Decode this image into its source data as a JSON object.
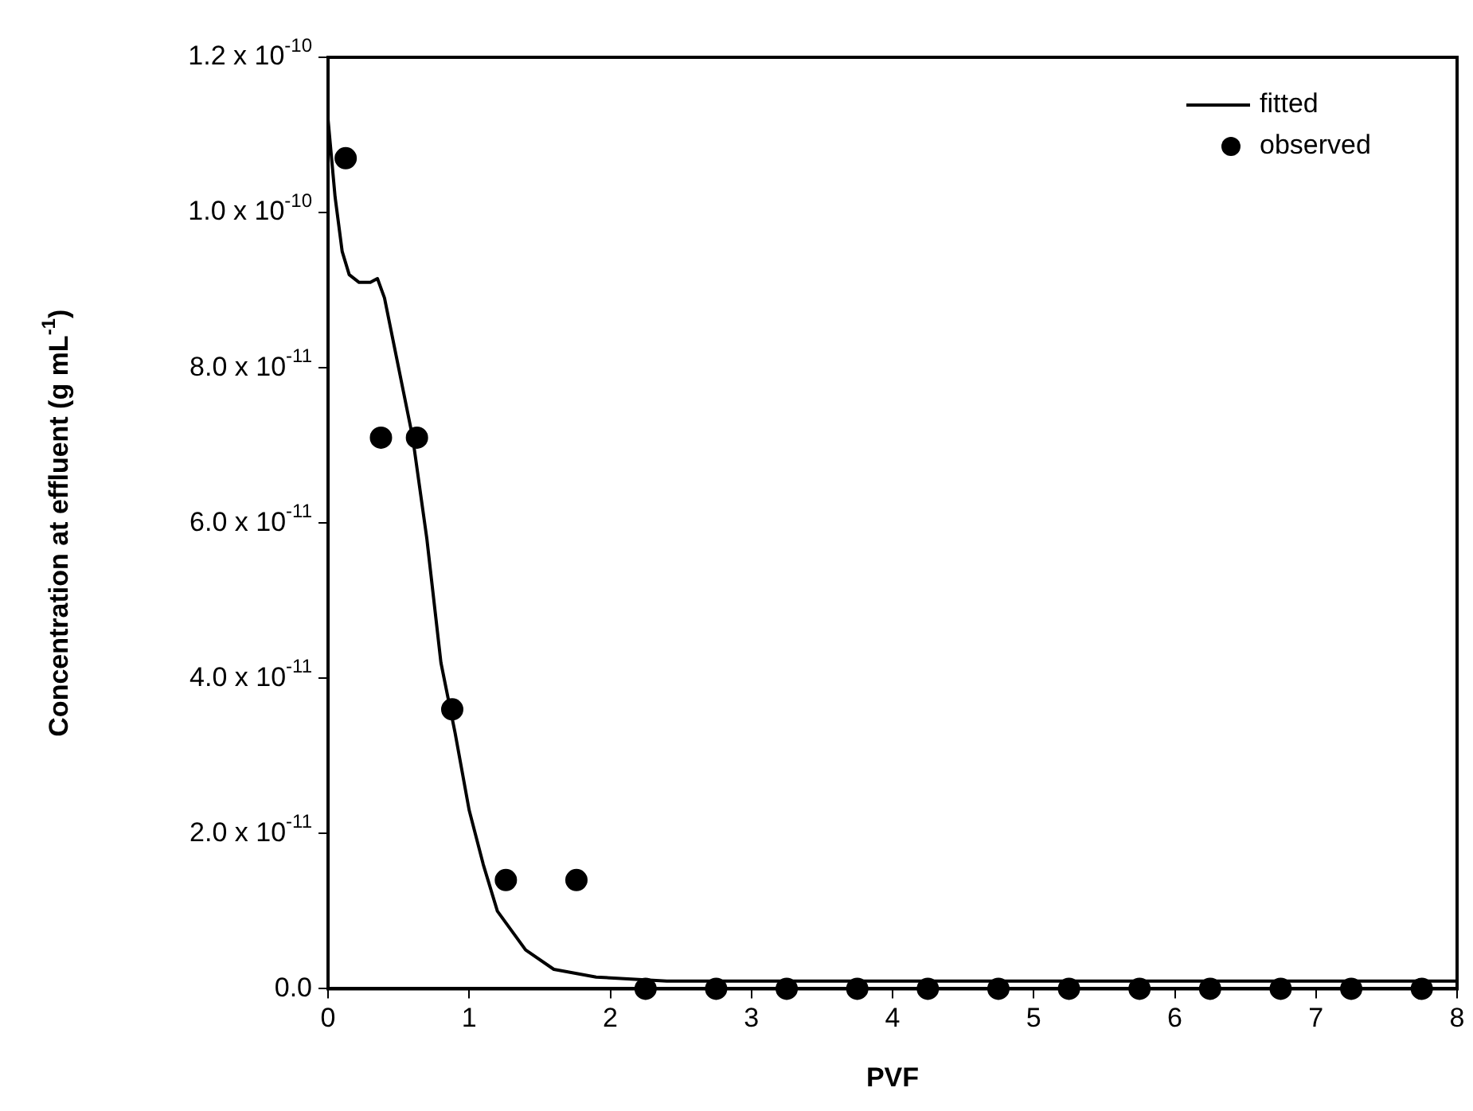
{
  "chart_data": {
    "type": "scatter",
    "xlabel": "PVF",
    "ylabel": "Concentration at effluent (g mL$^{-1}$)",
    "xlim": [
      0,
      8
    ],
    "xticks": [
      0,
      1,
      2,
      3,
      4,
      5,
      6,
      7,
      8
    ],
    "ylim": [
      0,
      1.2e-10
    ],
    "yticks": [
      {
        "value": 0,
        "label": "0.0"
      },
      {
        "value": 2e-11,
        "label": "2.0 x 10$^{-11}$"
      },
      {
        "value": 4e-11,
        "label": "4.0 x 10$^{-11}$"
      },
      {
        "value": 6e-11,
        "label": "6.0 x 10$^{-11}$"
      },
      {
        "value": 8e-11,
        "label": "8.0 x 10$^{-11}$"
      },
      {
        "value": 1e-10,
        "label": "1.0 x 10$^{-10}$"
      },
      {
        "value": 1.2e-10,
        "label": "1.2 x 10$^{-10}$"
      }
    ],
    "legend": "top right",
    "grid": false,
    "series": [
      {
        "name": "fitted",
        "type": "line",
        "color": "#000000",
        "marker": "none",
        "line_style": "solid",
        "x": [
          0,
          0.05,
          0.1,
          0.15,
          0.22,
          0.3,
          0.35,
          0.4,
          0.5,
          0.6,
          0.7,
          0.8,
          0.9,
          1.0,
          1.1,
          1.2,
          1.4,
          1.6,
          1.9,
          2.4,
          3,
          4,
          5,
          6,
          7,
          8
        ],
        "values": [
          1.12e-10,
          1.02e-10,
          9.5e-11,
          9.2e-11,
          9.1e-11,
          9.1e-11,
          9.15e-11,
          8.9e-11,
          8e-11,
          7.1e-11,
          5.8e-11,
          4.2e-11,
          3.3e-11,
          2.3e-11,
          1.6e-11,
          1e-11,
          5e-12,
          2.5e-12,
          1.5e-12,
          1e-12,
          1e-12,
          1e-12,
          1e-12,
          1e-12,
          1e-12,
          1e-12
        ]
      },
      {
        "name": "observed",
        "color": "#000000",
        "marker": "circle",
        "x": [
          0.125,
          0.375,
          0.63,
          0.88,
          1.26,
          1.76,
          2.25,
          2.75,
          3.25,
          3.75,
          4.25,
          4.75,
          5.25,
          5.75,
          6.25,
          6.75,
          7.25,
          7.75
        ],
        "values": [
          1.07e-10,
          7.1e-11,
          7.1e-11,
          3.6e-11,
          1.4e-11,
          1.4e-11,
          0,
          0,
          0,
          0,
          0,
          0,
          0,
          0,
          0,
          0,
          0,
          0
        ]
      }
    ]
  }
}
